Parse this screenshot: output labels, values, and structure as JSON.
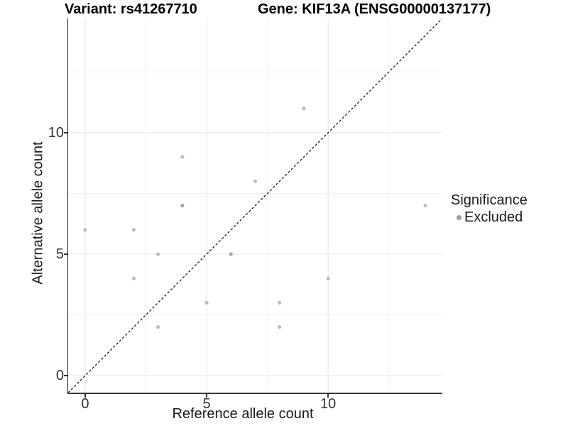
{
  "titles": {
    "variant": "Variant: rs41267710",
    "gene": "Gene: KIF13A (ENSG00000137177)"
  },
  "chart_data": {
    "type": "scatter",
    "xlabel": "Reference allele count",
    "ylabel": "Alternative allele count",
    "xlim": [
      -0.7,
      14.7
    ],
    "ylim": [
      -0.7,
      14.7
    ],
    "x_ticks": [
      0,
      5,
      10
    ],
    "y_ticks": [
      0,
      5,
      10
    ],
    "minor_gridlines": [
      2.5,
      7.5,
      12.5
    ],
    "grid": "major-and-minor, light gray, on white panel",
    "identity_line": {
      "style": "dashed",
      "from": [
        -0.7,
        -0.7
      ],
      "to": [
        14.7,
        14.7
      ]
    },
    "points": [
      {
        "x": 0,
        "y": 6
      },
      {
        "x": 2,
        "y": 4
      },
      {
        "x": 2,
        "y": 6
      },
      {
        "x": 3,
        "y": 2
      },
      {
        "x": 3,
        "y": 5
      },
      {
        "x": 4,
        "y": 7,
        "dark": true
      },
      {
        "x": 4,
        "y": 9
      },
      {
        "x": 5,
        "y": 3
      },
      {
        "x": 6,
        "y": 5,
        "dark": true
      },
      {
        "x": 7,
        "y": 8
      },
      {
        "x": 8,
        "y": 2
      },
      {
        "x": 8,
        "y": 3
      },
      {
        "x": 9,
        "y": 11
      },
      {
        "x": 10,
        "y": 4
      },
      {
        "x": 14,
        "y": 7
      }
    ],
    "legend": {
      "title": "Significance",
      "position": "right",
      "entries": [
        {
          "label": "Excluded",
          "color": "#9d9d9d"
        }
      ]
    },
    "colors": {
      "point": "#bcbcbc",
      "point_dark": "#a4a4a4",
      "identity_line": "#1a1a1a",
      "grid_major": "#e4e4e4",
      "grid_minor": "#f0f0f0",
      "axis_text": "#333333",
      "title_text": "#000000"
    }
  }
}
